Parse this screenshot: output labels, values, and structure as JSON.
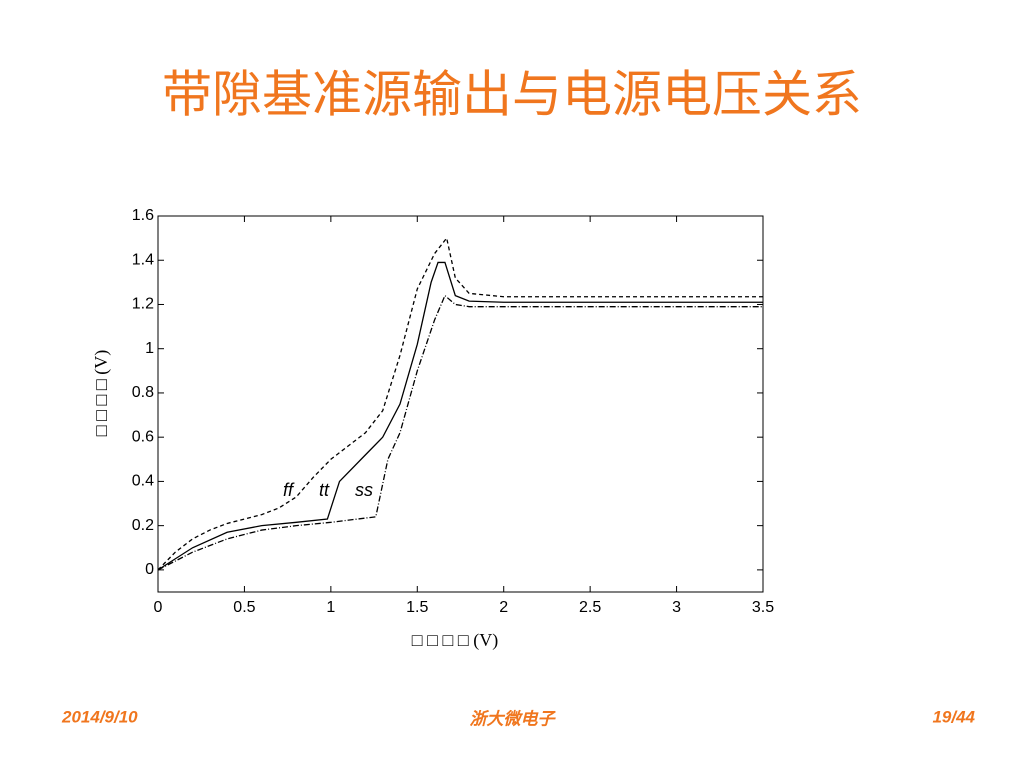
{
  "chart_data": {
    "type": "line",
    "title": "带隙基准源输出与电源电压关系",
    "xlabel": "□ □ □ □ (V)",
    "ylabel": "□ □ □ □ (V)",
    "xlim": [
      0,
      3.5
    ],
    "ylim": [
      -0.1,
      1.6
    ],
    "xticks": [
      0,
      0.5,
      1,
      1.5,
      2,
      2.5,
      3,
      3.5
    ],
    "yticks": [
      0,
      0.2,
      0.4,
      0.6,
      0.8,
      1,
      1.2,
      1.4,
      1.6
    ],
    "series": [
      {
        "name": "ff",
        "color": "#000000",
        "dash": "4,3",
        "x": [
          0,
          0.1,
          0.2,
          0.3,
          0.4,
          0.5,
          0.6,
          0.7,
          0.8,
          0.9,
          1.0,
          1.1,
          1.2,
          1.3,
          1.4,
          1.5,
          1.6,
          1.67,
          1.72,
          1.8,
          2.0,
          2.5,
          3.0,
          3.5
        ],
        "values": [
          0,
          0.08,
          0.14,
          0.18,
          0.21,
          0.23,
          0.25,
          0.28,
          0.33,
          0.42,
          0.5,
          0.56,
          0.62,
          0.72,
          0.97,
          1.27,
          1.43,
          1.5,
          1.32,
          1.25,
          1.235,
          1.235,
          1.235,
          1.235
        ]
      },
      {
        "name": "tt",
        "color": "#000000",
        "dash": "none",
        "x": [
          0,
          0.2,
          0.4,
          0.6,
          0.8,
          0.98,
          1.05,
          1.2,
          1.3,
          1.4,
          1.5,
          1.58,
          1.62,
          1.66,
          1.72,
          1.8,
          2.0,
          3.5
        ],
        "values": [
          0,
          0.1,
          0.17,
          0.2,
          0.215,
          0.23,
          0.4,
          0.52,
          0.6,
          0.75,
          1.02,
          1.3,
          1.39,
          1.39,
          1.24,
          1.215,
          1.21,
          1.21
        ]
      },
      {
        "name": "ss",
        "color": "#000000",
        "dash": "6,2,1,2",
        "x": [
          0,
          0.2,
          0.4,
          0.6,
          0.8,
          1.0,
          1.26,
          1.33,
          1.4,
          1.5,
          1.6,
          1.66,
          1.72,
          1.8,
          2.0,
          3.5
        ],
        "values": [
          0,
          0.08,
          0.14,
          0.18,
          0.2,
          0.215,
          0.24,
          0.5,
          0.62,
          0.9,
          1.13,
          1.24,
          1.2,
          1.19,
          1.19,
          1.19
        ]
      }
    ]
  },
  "footer": {
    "date": "2014/9/10",
    "org": "浙大微电子",
    "page": "19/44"
  }
}
